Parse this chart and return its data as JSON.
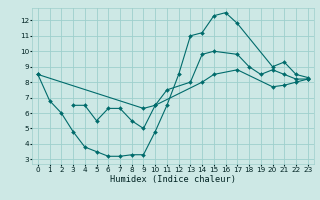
{
  "xlabel": "Humidex (Indice chaleur)",
  "bg_color": "#cde8e5",
  "grid_color": "#9ecfcc",
  "line_color": "#006b6b",
  "xlim": [
    -0.5,
    23.5
  ],
  "ylim": [
    2.7,
    12.8
  ],
  "x_ticks": [
    0,
    1,
    2,
    3,
    4,
    5,
    6,
    7,
    8,
    9,
    10,
    11,
    12,
    13,
    14,
    15,
    16,
    17,
    18,
    19,
    20,
    21,
    22,
    23
  ],
  "y_ticks": [
    3,
    4,
    5,
    6,
    7,
    8,
    9,
    10,
    11,
    12
  ],
  "line1_x": [
    0,
    1,
    2,
    3,
    4,
    5,
    6,
    7,
    8,
    9,
    10,
    11,
    12,
    13,
    14,
    15,
    16,
    17,
    20,
    21,
    22,
    23
  ],
  "line1_y": [
    8.5,
    6.8,
    6.0,
    4.8,
    3.8,
    3.5,
    3.2,
    3.2,
    3.3,
    3.3,
    4.8,
    6.5,
    8.5,
    11.0,
    11.2,
    12.3,
    12.5,
    11.8,
    9.0,
    9.3,
    8.5,
    8.3
  ],
  "line2_x": [
    3,
    4,
    5,
    6,
    7,
    8,
    9,
    10,
    11,
    13,
    14,
    15,
    17,
    18,
    19,
    20,
    21,
    22,
    23
  ],
  "line2_y": [
    6.5,
    6.5,
    5.5,
    6.3,
    6.3,
    5.5,
    5.0,
    6.5,
    7.5,
    8.0,
    9.8,
    10.0,
    9.8,
    9.0,
    8.5,
    8.8,
    8.5,
    8.2,
    8.2
  ],
  "line3_x": [
    0,
    9,
    10,
    14,
    15,
    17,
    20,
    21,
    22,
    23
  ],
  "line3_y": [
    8.5,
    6.3,
    6.5,
    8.0,
    8.5,
    8.8,
    7.7,
    7.8,
    8.0,
    8.2
  ],
  "marker_size": 2.0,
  "line_width": 0.8,
  "tick_fontsize": 5.2,
  "xlabel_fontsize": 6.2
}
